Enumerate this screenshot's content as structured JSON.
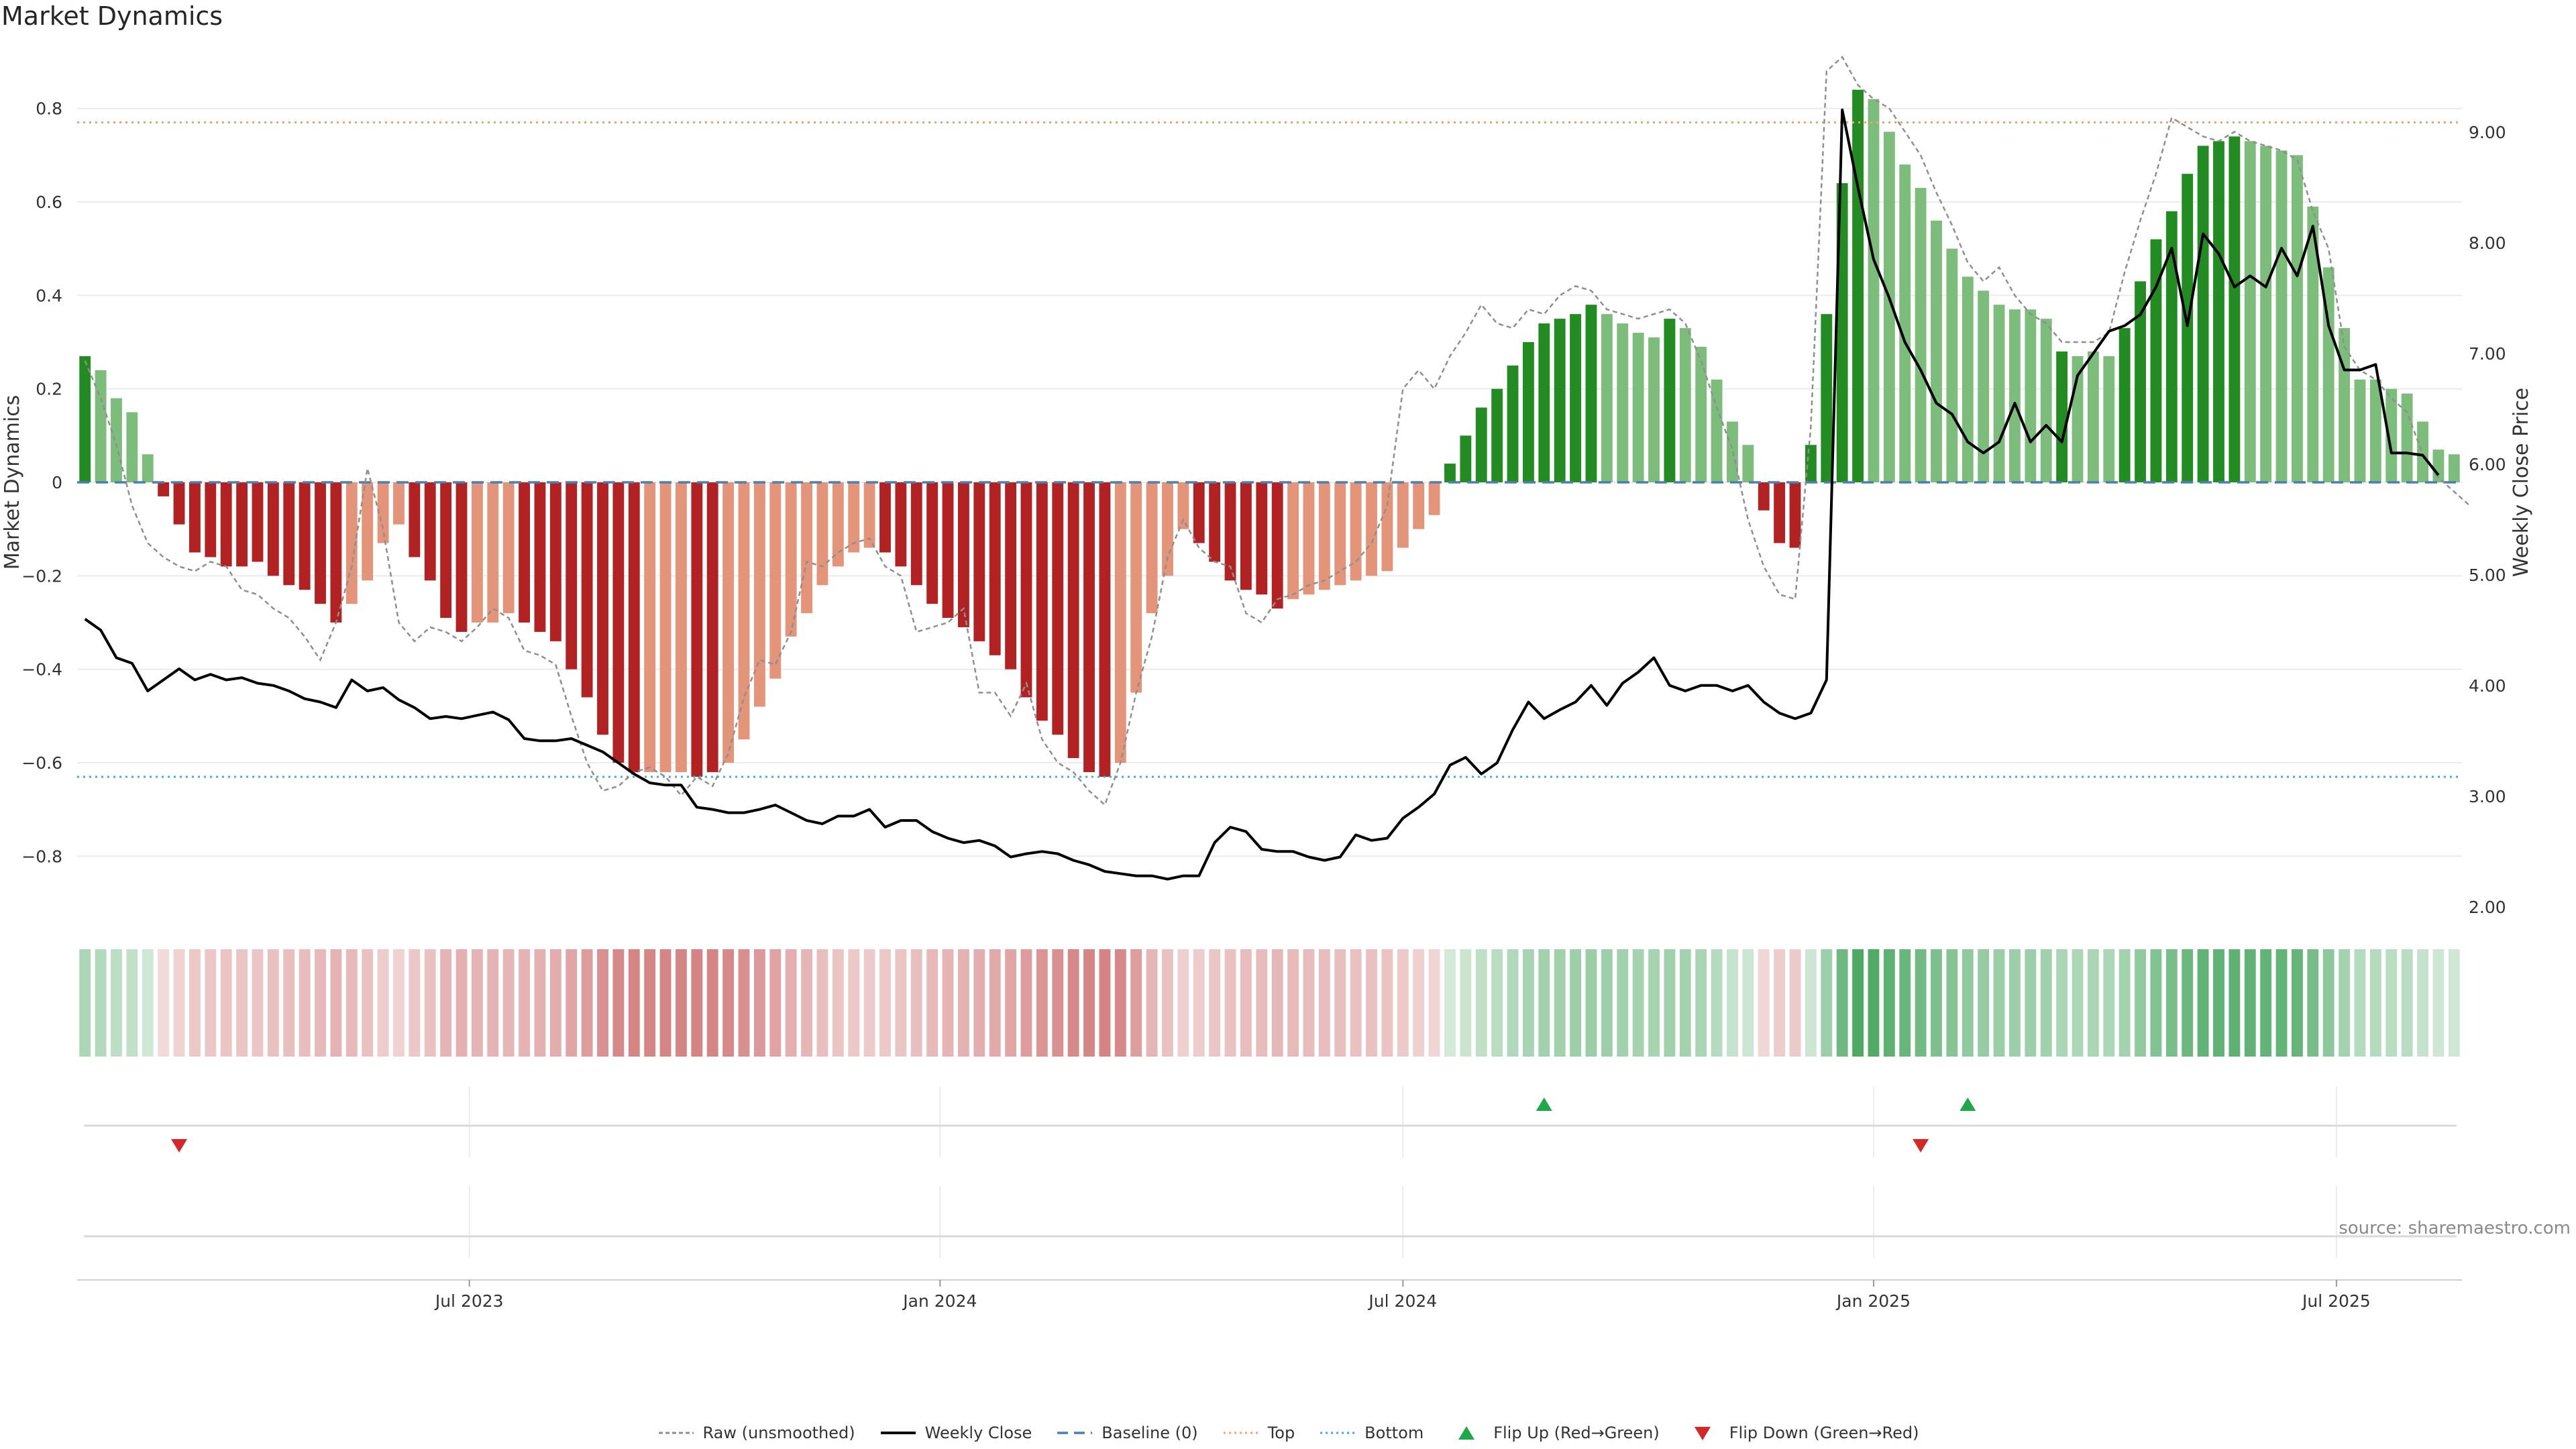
{
  "title": "Market Dynamics",
  "source": "source: sharemaestro.com",
  "chart_data": {
    "type": "bar",
    "title": "Market Dynamics",
    "ylabel": "Market Dynamics",
    "y2label": "Weekly Close Price",
    "ylim": [
      -0.92,
      0.92
    ],
    "y2lim": [
      1.95,
      9.72
    ],
    "yticks": [
      "0.8",
      "0.6",
      "0.4",
      "0.2",
      "0",
      "−0.2",
      "−0.4",
      "−0.6",
      "−0.8"
    ],
    "ytick_values": [
      0.8,
      0.6,
      0.4,
      0.2,
      0,
      -0.2,
      -0.4,
      -0.6,
      -0.8
    ],
    "y2ticks": [
      "9.00",
      "8.00",
      "7.00",
      "6.00",
      "5.00",
      "4.00",
      "3.00",
      "2.00"
    ],
    "y2tick_values": [
      9,
      8,
      7,
      6,
      5,
      4,
      3,
      2
    ],
    "xticks": [
      "Jul 2023",
      "Jan 2024",
      "Jul 2024",
      "Jan 2025",
      "Jul 2025"
    ],
    "xtick_index": [
      24.5,
      54.5,
      84.0,
      114.0,
      143.5
    ],
    "reference_lines": {
      "baseline": 0,
      "top": 0.77,
      "bottom": -0.63
    },
    "bar_dark_marker": "1 = darker shade (strengthening), 0 = lighter shade (weakening)",
    "bars": [
      0.27,
      0.24,
      0.18,
      0.15,
      0.06,
      -0.03,
      -0.09,
      -0.15,
      -0.16,
      -0.18,
      -0.18,
      -0.17,
      -0.2,
      -0.22,
      -0.23,
      -0.26,
      -0.3,
      -0.26,
      -0.21,
      -0.13,
      -0.09,
      -0.16,
      -0.21,
      -0.29,
      -0.32,
      -0.3,
      -0.3,
      -0.28,
      -0.3,
      -0.32,
      -0.34,
      -0.4,
      -0.46,
      -0.54,
      -0.6,
      -0.62,
      -0.62,
      -0.62,
      -0.62,
      -0.63,
      -0.62,
      -0.6,
      -0.55,
      -0.48,
      -0.42,
      -0.33,
      -0.28,
      -0.22,
      -0.18,
      -0.15,
      -0.14,
      -0.15,
      -0.18,
      -0.22,
      -0.26,
      -0.29,
      -0.31,
      -0.34,
      -0.37,
      -0.4,
      -0.46,
      -0.51,
      -0.54,
      -0.59,
      -0.62,
      -0.63,
      -0.6,
      -0.45,
      -0.28,
      -0.2,
      -0.1,
      -0.13,
      -0.17,
      -0.21,
      -0.23,
      -0.24,
      -0.27,
      -0.25,
      -0.24,
      -0.23,
      -0.22,
      -0.21,
      -0.2,
      -0.19,
      -0.14,
      -0.1,
      -0.07,
      0.04,
      0.1,
      0.16,
      0.2,
      0.25,
      0.3,
      0.34,
      0.35,
      0.36,
      0.38,
      0.36,
      0.34,
      0.32,
      0.31,
      0.35,
      0.33,
      0.29,
      0.22,
      0.13,
      0.08,
      -0.06,
      -0.13,
      -0.14,
      0.08,
      0.36,
      0.64,
      0.84,
      0.82,
      0.75,
      0.68,
      0.63,
      0.56,
      0.5,
      0.44,
      0.41,
      0.38,
      0.37,
      0.37,
      0.35,
      0.28,
      0.27,
      0.28,
      0.27,
      0.33,
      0.43,
      0.52,
      0.58,
      0.66,
      0.72,
      0.73,
      0.74,
      0.73,
      0.72,
      0.71,
      0.7,
      0.59,
      0.46,
      0.33,
      0.22,
      0.22,
      0.2,
      0.19,
      0.13,
      0.07,
      0.06
    ],
    "bar_dark": [
      1,
      0,
      0,
      0,
      0,
      1,
      1,
      1,
      1,
      1,
      1,
      1,
      1,
      1,
      1,
      1,
      1,
      0,
      0,
      0,
      0,
      1,
      1,
      1,
      1,
      0,
      0,
      0,
      1,
      1,
      1,
      1,
      1,
      1,
      1,
      1,
      0,
      0,
      0,
      1,
      1,
      0,
      0,
      0,
      0,
      0,
      0,
      0,
      0,
      0,
      0,
      1,
      1,
      1,
      1,
      1,
      1,
      1,
      1,
      1,
      1,
      1,
      1,
      1,
      1,
      1,
      0,
      0,
      0,
      0,
      0,
      1,
      1,
      1,
      1,
      1,
      1,
      0,
      0,
      0,
      0,
      0,
      0,
      0,
      0,
      0,
      0,
      1,
      1,
      1,
      1,
      1,
      1,
      1,
      1,
      1,
      1,
      0,
      0,
      0,
      0,
      1,
      0,
      0,
      0,
      0,
      0,
      1,
      1,
      1,
      1,
      1,
      1,
      1,
      0,
      0,
      0,
      0,
      0,
      0,
      0,
      0,
      0,
      0,
      0,
      0,
      1,
      0,
      0,
      0,
      1,
      1,
      1,
      1,
      1,
      1,
      1,
      1,
      0,
      0,
      0,
      0,
      0,
      0,
      0,
      0,
      0,
      0,
      0,
      0,
      0,
      0
    ],
    "raw": [
      0.26,
      0.18,
      0.08,
      -0.05,
      -0.13,
      -0.16,
      -0.18,
      -0.19,
      -0.17,
      -0.18,
      -0.23,
      -0.24,
      -0.27,
      -0.29,
      -0.33,
      -0.38,
      -0.3,
      -0.18,
      0.03,
      -0.1,
      -0.3,
      -0.34,
      -0.31,
      -0.32,
      -0.34,
      -0.31,
      -0.27,
      -0.29,
      -0.36,
      -0.37,
      -0.39,
      -0.5,
      -0.6,
      -0.66,
      -0.65,
      -0.62,
      -0.61,
      -0.63,
      -0.67,
      -0.63,
      -0.65,
      -0.58,
      -0.46,
      -0.38,
      -0.39,
      -0.32,
      -0.17,
      -0.18,
      -0.15,
      -0.13,
      -0.12,
      -0.18,
      -0.2,
      -0.32,
      -0.31,
      -0.3,
      -0.27,
      -0.45,
      -0.45,
      -0.5,
      -0.43,
      -0.55,
      -0.6,
      -0.62,
      -0.66,
      -0.69,
      -0.6,
      -0.45,
      -0.33,
      -0.16,
      -0.08,
      -0.14,
      -0.17,
      -0.18,
      -0.28,
      -0.3,
      -0.25,
      -0.24,
      -0.22,
      -0.21,
      -0.19,
      -0.17,
      -0.13,
      -0.05,
      0.2,
      0.24,
      0.2,
      0.27,
      0.32,
      0.38,
      0.34,
      0.33,
      0.37,
      0.36,
      0.4,
      0.42,
      0.41,
      0.37,
      0.36,
      0.35,
      0.36,
      0.37,
      0.34,
      0.26,
      0.16,
      0.07,
      -0.08,
      -0.18,
      -0.24,
      -0.25,
      0.12,
      0.88,
      0.91,
      0.85,
      0.82,
      0.8,
      0.75,
      0.7,
      0.62,
      0.55,
      0.47,
      0.43,
      0.46,
      0.4,
      0.36,
      0.34,
      0.3,
      0.3,
      0.3,
      0.32,
      0.45,
      0.56,
      0.66,
      0.78,
      0.76,
      0.74,
      0.73,
      0.75,
      0.73,
      0.72,
      0.71,
      0.69,
      0.58,
      0.5,
      0.29,
      0.24,
      0.22,
      0.18,
      0.15,
      0.06,
      0.01,
      -0.02,
      -0.05
    ],
    "close": [
      4.6,
      4.5,
      4.25,
      4.2,
      3.95,
      4.05,
      4.15,
      4.05,
      4.1,
      4.05,
      4.07,
      4.02,
      4.0,
      3.95,
      3.88,
      3.85,
      3.8,
      4.05,
      3.95,
      3.98,
      3.87,
      3.8,
      3.7,
      3.72,
      3.7,
      3.73,
      3.76,
      3.69,
      3.52,
      3.5,
      3.5,
      3.52,
      3.46,
      3.4,
      3.3,
      3.2,
      3.12,
      3.1,
      3.1,
      2.9,
      2.88,
      2.85,
      2.85,
      2.88,
      2.92,
      2.85,
      2.78,
      2.75,
      2.82,
      2.82,
      2.88,
      2.72,
      2.78,
      2.78,
      2.68,
      2.62,
      2.58,
      2.6,
      2.55,
      2.45,
      2.48,
      2.5,
      2.48,
      2.42,
      2.38,
      2.32,
      2.3,
      2.28,
      2.28,
      2.25,
      2.28,
      2.28,
      2.58,
      2.72,
      2.68,
      2.52,
      2.5,
      2.5,
      2.45,
      2.42,
      2.45,
      2.65,
      2.6,
      2.62,
      2.8,
      2.9,
      3.02,
      3.28,
      3.35,
      3.2,
      3.3,
      3.6,
      3.85,
      3.7,
      3.78,
      3.85,
      4.0,
      3.82,
      4.02,
      4.12,
      4.25,
      4.0,
      3.95,
      4.0,
      4.0,
      3.95,
      4.0,
      3.85,
      3.75,
      3.7,
      3.75,
      4.05,
      9.2,
      8.5,
      7.85,
      7.5,
      7.1,
      6.85,
      6.55,
      6.45,
      6.2,
      6.1,
      6.2,
      6.55,
      6.2,
      6.35,
      6.2,
      6.8,
      7.0,
      7.2,
      7.25,
      7.35,
      7.6,
      7.95,
      7.25,
      8.08,
      7.9,
      7.6,
      7.7,
      7.6,
      7.95,
      7.7,
      8.15,
      7.25,
      6.85,
      6.85,
      6.9,
      6.1,
      6.1,
      6.08,
      5.9
    ]
  },
  "ribbon": {
    "label": "strength ribbon",
    "color_up": "#2e9a49",
    "color_down": "#c24a4a"
  },
  "flips": {
    "up": [
      93,
      120
    ],
    "down": [
      6,
      117
    ],
    "up_label": "Flip Up (Red→Green)",
    "down_label": "Flip Down (Green→Red)"
  },
  "colors": {
    "green_dark": "#228b22",
    "green_light": "#7cbd7c",
    "red_dark": "#b22222",
    "red_light": "#e49478",
    "close": "#000000",
    "raw": "#8f8f8f",
    "baseline": "#4a7fb5",
    "top": "#f0a36e",
    "bottom": "#43b0c8",
    "flip_up": "#1fa84a",
    "flip_down": "#d62728",
    "grid": "#ebebeb"
  },
  "legend": [
    {
      "key": "raw",
      "label": "Raw (unsmoothed)"
    },
    {
      "key": "close",
      "label": "Weekly Close"
    },
    {
      "key": "baseline",
      "label": "Baseline (0)"
    },
    {
      "key": "top",
      "label": "Top"
    },
    {
      "key": "bottom",
      "label": "Bottom"
    },
    {
      "key": "flip_up",
      "label": "Flip Up (Red→Green)"
    },
    {
      "key": "flip_down",
      "label": "Flip Down (Green→Red)"
    }
  ]
}
